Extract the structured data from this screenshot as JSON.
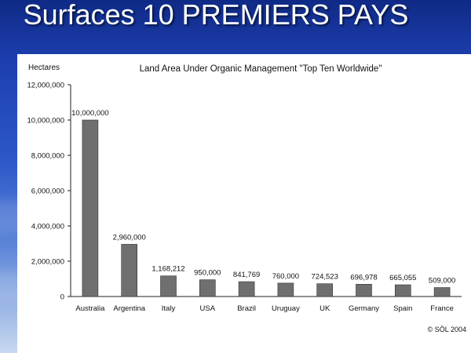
{
  "slide_title": "Surfaces 10 PREMIERS PAYS",
  "chart_data": {
    "type": "bar",
    "title": "Land Area Under Organic Management \"Top Ten Worldwide\"",
    "ylabel": "Hectares",
    "xlabel": "",
    "categories": [
      "Australia",
      "Argentina",
      "Italy",
      "USA",
      "Brazil",
      "Uruguay",
      "UK",
      "Germany",
      "Spain",
      "France"
    ],
    "values": [
      10000000,
      2960000,
      1168212,
      950000,
      841769,
      760000,
      724523,
      696978,
      665055,
      509000
    ],
    "data_labels": [
      "10,000,000",
      "2,960,000",
      "1,168,212",
      "950,000",
      "841,769",
      "760,000",
      "724,523",
      "696,978",
      "665,055",
      "509,000"
    ],
    "ylim": [
      0,
      12000000
    ],
    "yticks": [
      0,
      2000000,
      4000000,
      6000000,
      8000000,
      10000000,
      12000000
    ],
    "ytick_labels": [
      "0",
      "2,000,000",
      "4,000,000",
      "6,000,000",
      "8,000,000",
      "10,000,000",
      "12,000,000"
    ],
    "grid": false,
    "bar_color": "#6f6f6f",
    "copyright": "© SÖL 2004"
  }
}
